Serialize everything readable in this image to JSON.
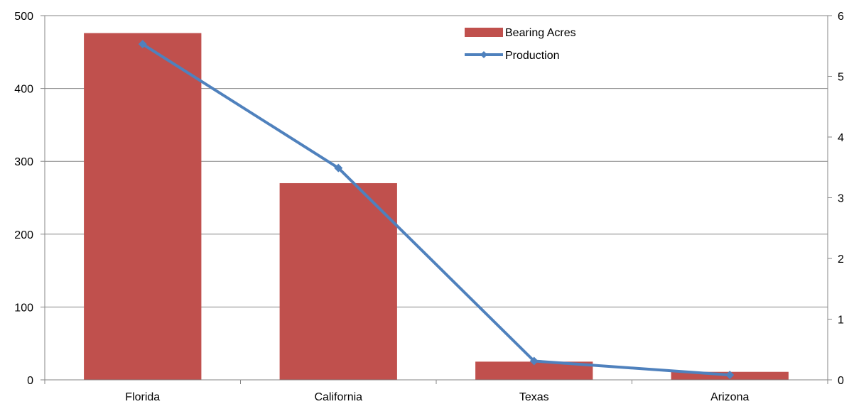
{
  "chart_data": {
    "type": "bar",
    "categories": [
      "Florida",
      "California",
      "Texas",
      "Arizona"
    ],
    "series": [
      {
        "name": "Bearing Acres",
        "type": "bar",
        "axis": "left",
        "color": "#C0504D",
        "values": [
          476,
          270,
          25,
          11
        ]
      },
      {
        "name": "Production",
        "type": "line",
        "axis": "right",
        "color": "#4F81BD",
        "marker": "diamond",
        "values": [
          553,
          349,
          31,
          8
        ]
      }
    ],
    "y_left": {
      "ylim": [
        0,
        500
      ],
      "ticks": [
        0,
        100,
        200,
        300,
        400,
        500
      ],
      "tick_labels": [
        "0",
        "100",
        "200",
        "300",
        "400",
        "500"
      ]
    },
    "y_right": {
      "ylim": [
        0,
        600
      ],
      "ticks": [
        0,
        100,
        200,
        300,
        400,
        500,
        600
      ],
      "tick_labels": [
        "0",
        "1",
        "2",
        "3",
        "4",
        "5",
        "6"
      ]
    },
    "grid": true,
    "legend_position": "top-right",
    "title": "",
    "xlabel": "",
    "ylabel": ""
  }
}
